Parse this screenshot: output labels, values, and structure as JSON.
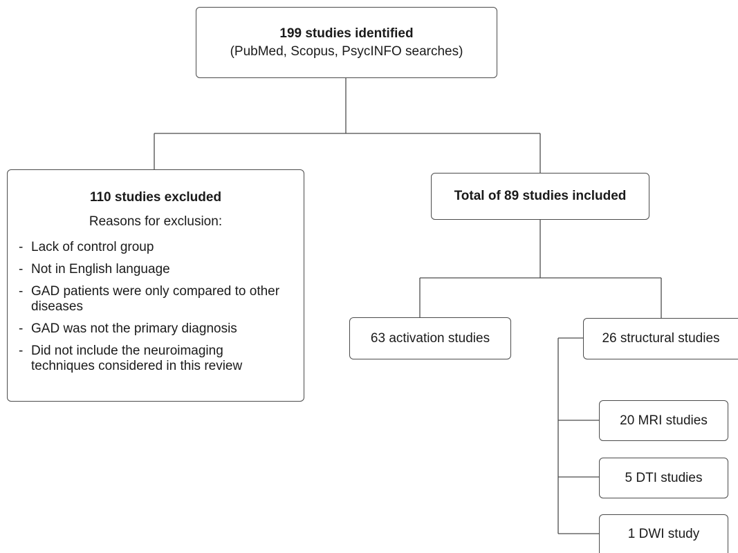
{
  "top": {
    "title": "199 studies identified",
    "subtitle": "(PubMed, Scopus, PsycINFO searches)"
  },
  "excluded": {
    "title": "110 studies excluded",
    "subtitle": "Reasons for exclusion:",
    "reasons": [
      "Lack of control group",
      "Not in English language",
      "GAD patients were only compared to other diseases",
      "GAD was not the primary diagnosis",
      "Did not include the neuroimaging techniques considered in this review"
    ]
  },
  "included": {
    "title": "Total of 89 studies included"
  },
  "activation": {
    "label": "63 activation studies"
  },
  "structural": {
    "label": "26 structural studies",
    "children": [
      "20 MRI studies",
      "5 DTI studies",
      "1 DWI study"
    ]
  }
}
